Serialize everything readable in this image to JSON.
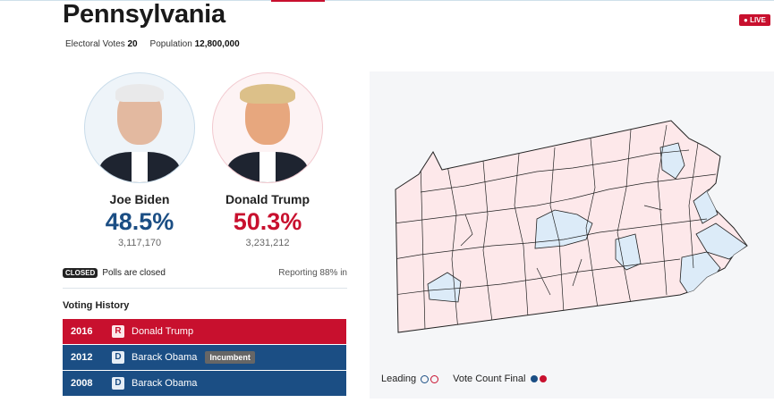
{
  "state": {
    "name": "Pennsylvania",
    "electoral_label": "Electoral Votes",
    "electoral_votes": "20",
    "population_label": "Population",
    "population": "12,800,000",
    "live": "LIVE"
  },
  "candidates": [
    {
      "name": "Joe Biden",
      "pct": "48.5%",
      "votes": "3,117,170",
      "color": "#1b4e84"
    },
    {
      "name": "Donald Trump",
      "pct": "50.3%",
      "votes": "3,231,212",
      "color": "#c8102e"
    }
  ],
  "status": {
    "badge": "CLOSED",
    "text": "Polls are closed",
    "reporting": "Reporting 88% in"
  },
  "history": {
    "title": "Voting History",
    "rows": [
      {
        "year": "2016",
        "party": "R",
        "name": "Donald Trump",
        "color": "#c8102e"
      },
      {
        "year": "2012",
        "party": "D",
        "name": "Barack Obama",
        "badge": "Incumbent",
        "color": "#1b4e84"
      },
      {
        "year": "2008",
        "party": "D",
        "name": "Barack Obama",
        "color": "#1b4e84"
      }
    ]
  },
  "legend": {
    "leading": "Leading",
    "final": "Vote Count Final",
    "dem_color": "#1b4e84",
    "rep_color": "#c8102e",
    "dem_light": "#dcebf8",
    "rep_light": "#fde8ea"
  }
}
